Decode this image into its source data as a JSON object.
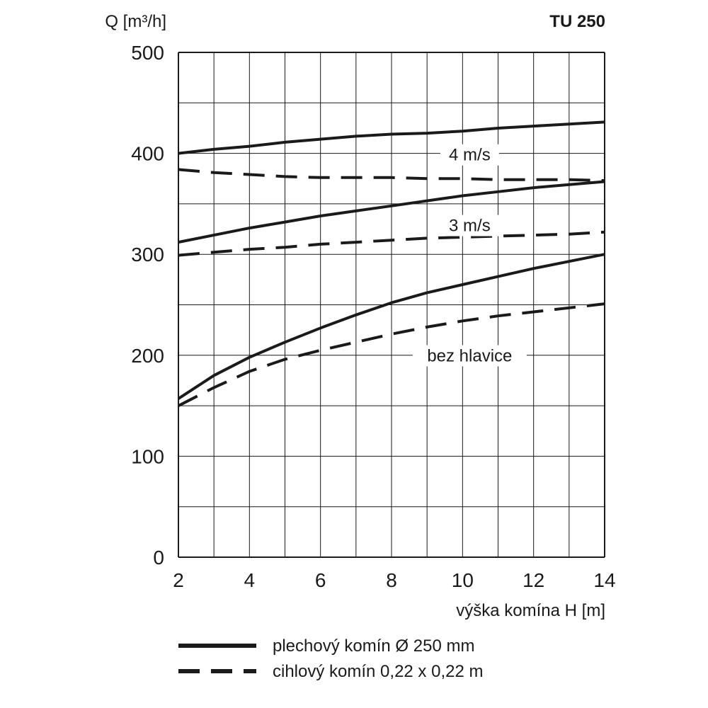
{
  "chart_data": {
    "type": "line",
    "title": "TU 250",
    "xlabel": "výška komína H [m]",
    "ylabel": "Q [m³/h]",
    "xlim": [
      2,
      14
    ],
    "ylim": [
      0,
      500
    ],
    "x_ticks": [
      2,
      4,
      6,
      8,
      10,
      12,
      14
    ],
    "y_ticks": [
      0,
      100,
      200,
      300,
      400,
      500
    ],
    "grid": true,
    "legend": [
      {
        "label": "plechový komín Ø 250 mm",
        "style": "solid"
      },
      {
        "label": "cihlový komín 0,22 x 0,22 m",
        "style": "dashed"
      }
    ],
    "series": [
      {
        "group": "4 m/s",
        "style": "solid",
        "x": [
          2,
          3,
          4,
          5,
          6,
          7,
          8,
          9,
          10,
          11,
          12,
          13,
          14
        ],
        "y": [
          400,
          404,
          407,
          411,
          414,
          417,
          419,
          420,
          422,
          425,
          427,
          429,
          431
        ]
      },
      {
        "group": "4 m/s",
        "style": "dashed",
        "x": [
          2,
          3,
          4,
          5,
          6,
          7,
          8,
          9,
          10,
          11,
          12,
          13,
          14
        ],
        "y": [
          384,
          381,
          379,
          377,
          376,
          376,
          376,
          375,
          375,
          374,
          374,
          374,
          373
        ]
      },
      {
        "group": "3 m/s",
        "style": "solid",
        "x": [
          2,
          3,
          4,
          5,
          6,
          7,
          8,
          9,
          10,
          11,
          12,
          13,
          14
        ],
        "y": [
          312,
          319,
          326,
          332,
          338,
          343,
          348,
          353,
          358,
          362,
          366,
          369,
          372
        ]
      },
      {
        "group": "3 m/s",
        "style": "dashed",
        "x": [
          2,
          3,
          4,
          5,
          6,
          7,
          8,
          9,
          10,
          11,
          12,
          13,
          14
        ],
        "y": [
          299,
          302,
          305,
          307,
          310,
          312,
          314,
          316,
          317,
          318,
          319,
          320,
          322
        ]
      },
      {
        "group": "bez hlavice",
        "style": "solid",
        "x": [
          2,
          3,
          4,
          5,
          6,
          7,
          8,
          9,
          10,
          11,
          12,
          13,
          14
        ],
        "y": [
          157,
          180,
          198,
          213,
          227,
          240,
          252,
          262,
          270,
          278,
          286,
          293,
          300
        ]
      },
      {
        "group": "bez hlavice",
        "style": "dashed",
        "x": [
          2,
          3,
          4,
          5,
          6,
          7,
          8,
          9,
          10,
          11,
          12,
          13,
          14
        ],
        "y": [
          150,
          168,
          184,
          196,
          205,
          213,
          221,
          228,
          234,
          239,
          243,
          247,
          251
        ]
      }
    ],
    "annotations": [
      {
        "text": "4 m/s",
        "x": 10.2,
        "y": 395
      },
      {
        "text": "3 m/s",
        "x": 10.2,
        "y": 325
      },
      {
        "text": "bez hlavice",
        "x": 10.2,
        "y": 196
      }
    ]
  }
}
